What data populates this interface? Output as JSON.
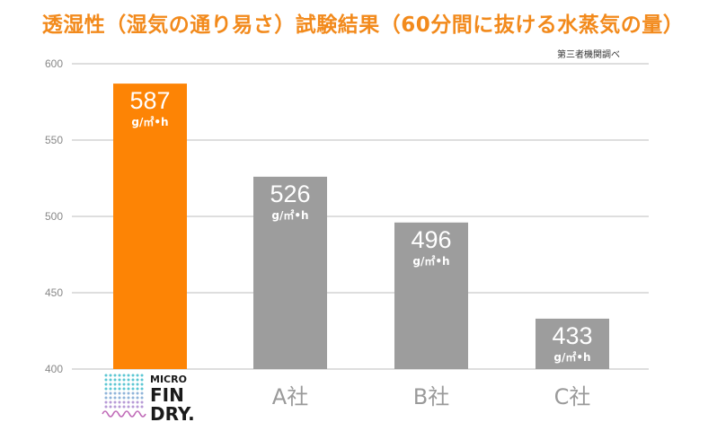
{
  "page": {
    "title": "透湿性（湿気の通り易さ）試験結果（60分間に抜ける水蒸気の量）",
    "source_note": "第三者機関調べ"
  },
  "colors": {
    "highlight": "#fd8405",
    "bar": "#9d9d9d",
    "title": "#f28a1c",
    "grid": "#bdbdbd"
  },
  "logo": {
    "line1": "MICRO",
    "line2": "FIN",
    "line3": "DRY.",
    "icon": "micro-fin-dry-dots-icon"
  },
  "chart_data": {
    "type": "bar",
    "categories": [
      "MICRO FIN DRY",
      "A社",
      "B社",
      "C社"
    ],
    "values": [
      587,
      526,
      496,
      433
    ],
    "value_unit": "g/㎡•h",
    "yticks": [
      400,
      450,
      500,
      550,
      600
    ],
    "ylim": [
      400,
      600
    ],
    "grid": true,
    "highlight_index": 0
  }
}
